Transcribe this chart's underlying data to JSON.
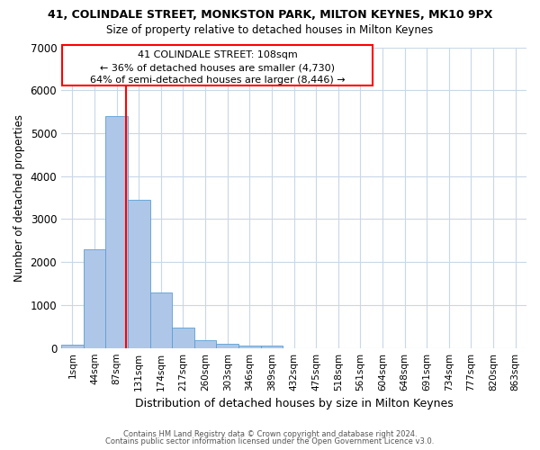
{
  "title": "41, COLINDALE STREET, MONKSTON PARK, MILTON KEYNES, MK10 9PX",
  "subtitle": "Size of property relative to detached houses in Milton Keynes",
  "xlabel": "Distribution of detached houses by size in Milton Keynes",
  "ylabel": "Number of detached properties",
  "bar_labels": [
    "1sqm",
    "44sqm",
    "87sqm",
    "131sqm",
    "174sqm",
    "217sqm",
    "260sqm",
    "303sqm",
    "346sqm",
    "389sqm",
    "432sqm",
    "475sqm",
    "518sqm",
    "561sqm",
    "604sqm",
    "648sqm",
    "691sqm",
    "734sqm",
    "777sqm",
    "820sqm",
    "863sqm"
  ],
  "bar_values": [
    80,
    2300,
    5400,
    3450,
    1300,
    480,
    190,
    100,
    60,
    60,
    0,
    0,
    0,
    0,
    0,
    0,
    0,
    0,
    0,
    0,
    0
  ],
  "bar_color": "#aec6e8",
  "bar_edge_color": "#5a9fd4",
  "ylim": [
    0,
    7000
  ],
  "yticks": [
    0,
    1000,
    2000,
    3000,
    4000,
    5000,
    6000,
    7000
  ],
  "red_line_x": 2.43,
  "annotation_line1": "41 COLINDALE STREET: 108sqm",
  "annotation_line2": "← 36% of detached houses are smaller (4,730)",
  "annotation_line3": "64% of semi-detached houses are larger (8,446) →",
  "footer_line1": "Contains HM Land Registry data © Crown copyright and database right 2024.",
  "footer_line2": "Contains public sector information licensed under the Open Government Licence v3.0.",
  "background_color": "#ffffff",
  "grid_color": "#c8d8e8"
}
